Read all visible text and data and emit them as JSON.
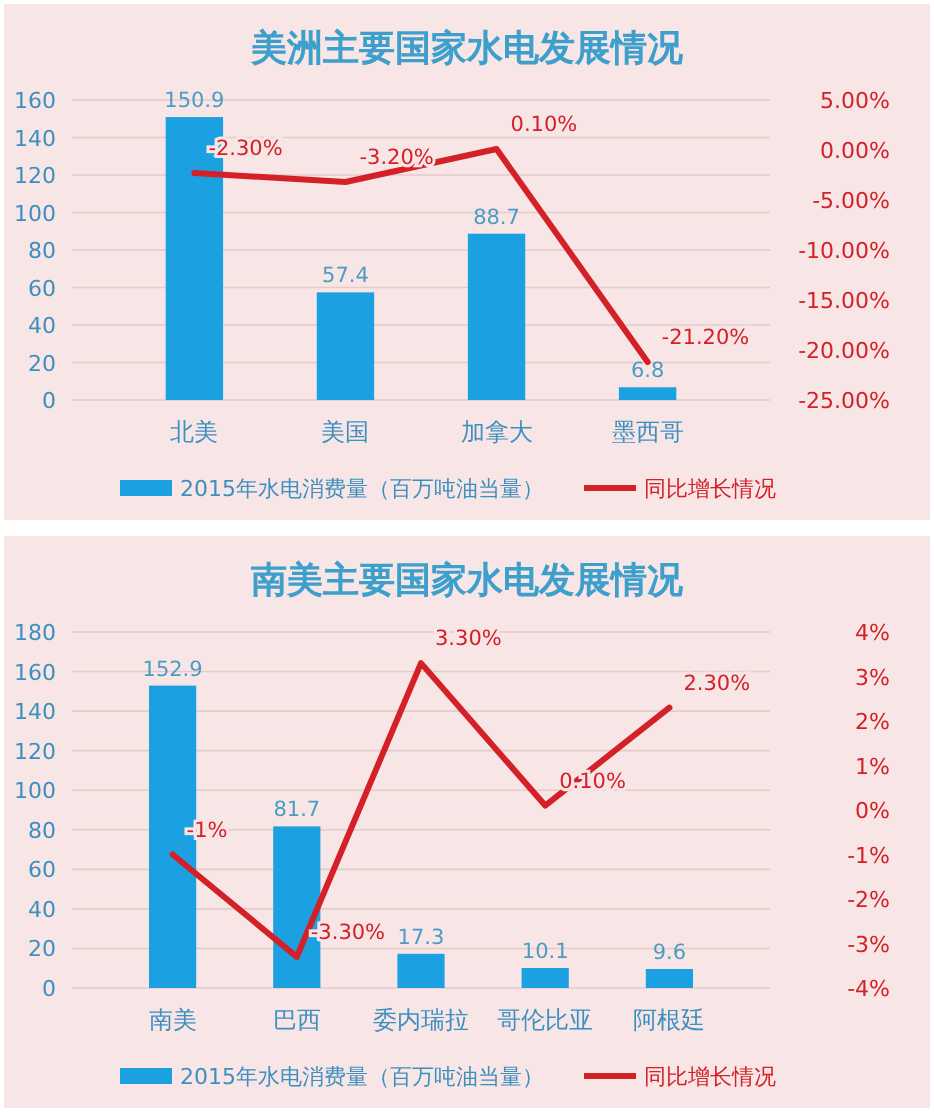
{
  "chart_data": [
    {
      "type": "bar",
      "title": "美洲主要国家水电发展情况",
      "categories": [
        "北美",
        "美国",
        "加拿大",
        "墨西哥"
      ],
      "ylim": [
        0,
        160
      ],
      "yticks": [
        0,
        20,
        40,
        60,
        80,
        100,
        120,
        140,
        160
      ],
      "y2lim": [
        -25,
        5
      ],
      "y2ticks": [
        {
          "value": -25,
          "label": "-25.00%"
        },
        {
          "value": -20,
          "label": "-20.00%"
        },
        {
          "value": -15,
          "label": "-15.00%"
        },
        {
          "value": -10,
          "label": "-10.00%"
        },
        {
          "value": -5,
          "label": "-5.00%"
        },
        {
          "value": 0,
          "label": "0.00%"
        },
        {
          "value": 5,
          "label": "5.00%"
        }
      ],
      "grid": "y",
      "legend": "bottom",
      "series": [
        {
          "name": "2015年水电消费量（百万吨油当量）",
          "color": "#1ba1e2",
          "values": [
            150.9,
            57.4,
            88.7,
            6.8
          ],
          "value_labels": [
            "150.9",
            "57.4",
            "88.7",
            "6.8"
          ]
        },
        {
          "name": "同比增长情况",
          "type": "line",
          "axis": "y2",
          "color": "#d42027",
          "values": [
            -2.3,
            -3.2,
            0.1,
            -21.2
          ],
          "value_labels": [
            "-2.30%",
            "-3.20%",
            "0.10%",
            "-21.20%"
          ]
        }
      ]
    },
    {
      "type": "bar",
      "title": "南美主要国家水电发展情况",
      "categories": [
        "南美",
        "巴西",
        "委内瑞拉",
        "哥伦比亚",
        "阿根廷"
      ],
      "ylim": [
        0,
        180
      ],
      "yticks": [
        0,
        20,
        40,
        60,
        80,
        100,
        120,
        140,
        160,
        180
      ],
      "y2lim": [
        -4,
        4
      ],
      "y2ticks": [
        {
          "value": -4,
          "label": "-4%"
        },
        {
          "value": -3,
          "label": "-3%"
        },
        {
          "value": -2,
          "label": "-2%"
        },
        {
          "value": -1,
          "label": "-1%"
        },
        {
          "value": 0,
          "label": "0%"
        },
        {
          "value": 1,
          "label": "1%"
        },
        {
          "value": 2,
          "label": "2%"
        },
        {
          "value": 3,
          "label": "3%"
        },
        {
          "value": 4,
          "label": "4%"
        }
      ],
      "grid": "y",
      "legend": "bottom",
      "series": [
        {
          "name": "2015年水电消费量（百万吨油当量）",
          "color": "#1ba1e2",
          "values": [
            152.9,
            81.7,
            17.3,
            10.1,
            9.6
          ],
          "value_labels": [
            "152.9",
            "81.7",
            "17.3",
            "10.1",
            "9.6"
          ]
        },
        {
          "name": "同比增长情况",
          "type": "line",
          "axis": "y2",
          "color": "#d42027",
          "values": [
            -1,
            -3.3,
            3.3,
            0.1,
            2.3
          ],
          "value_labels": [
            "-1%",
            "-3.30%",
            "3.30%",
            "0.10%",
            "2.30%"
          ]
        }
      ]
    }
  ]
}
